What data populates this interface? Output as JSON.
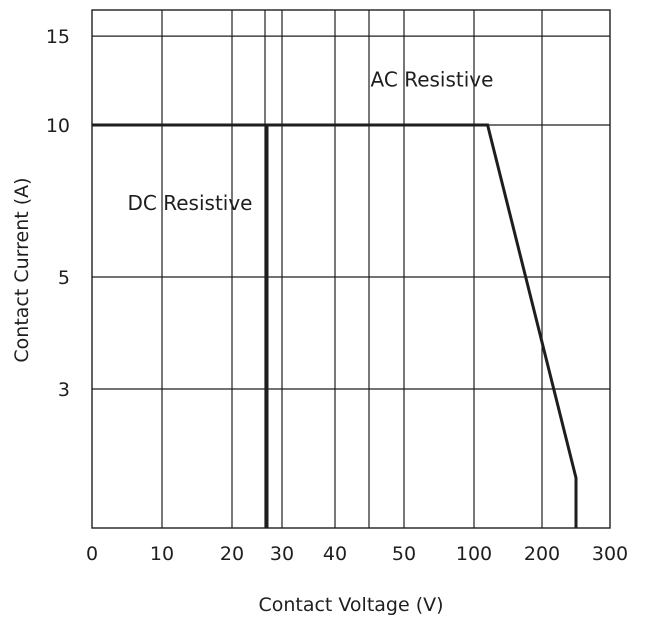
{
  "chart_data": {
    "type": "line",
    "title": "",
    "xlabel": "Contact Voltage (V)",
    "ylabel": "Contact Current (A)",
    "x_scale": "piecewise-linear (0–50, 100–300)",
    "y_scale": "log",
    "xlim": [
      0,
      300
    ],
    "ylim": [
      1,
      20
    ],
    "grid": true,
    "legend": "none",
    "x_ticks": [
      {
        "value": 0,
        "label": "0"
      },
      {
        "value": 10,
        "label": "10"
      },
      {
        "value": 20,
        "label": "20"
      },
      {
        "value": 30,
        "label": "30"
      },
      {
        "value": 40,
        "label": "40"
      },
      {
        "value": 50,
        "label": "50"
      },
      {
        "value": 100,
        "label": "100"
      },
      {
        "value": 200,
        "label": "200"
      },
      {
        "value": 300,
        "label": "300"
      }
    ],
    "x_extra_gridlines": [
      25,
      45
    ],
    "y_ticks": [
      {
        "value": 3,
        "label": "3"
      },
      {
        "value": 5,
        "label": "5"
      },
      {
        "value": 10,
        "label": "10"
      },
      {
        "value": 15,
        "label": "15"
      }
    ],
    "series": [
      {
        "name": "DC Resistive",
        "points": [
          [
            0,
            10
          ],
          [
            27,
            10
          ],
          [
            27,
            1
          ]
        ]
      },
      {
        "name": "AC Resistive",
        "points": [
          [
            0,
            10
          ],
          [
            120,
            10
          ],
          [
            250,
            2
          ],
          [
            250,
            1
          ]
        ]
      }
    ],
    "annotations": [
      {
        "text": "AC Resistive",
        "x": 70,
        "y": 12.3
      },
      {
        "text": "DC Resistive",
        "x": 14,
        "y": 7
      }
    ],
    "colors": {
      "line": "#1e1e1e",
      "grid": "#1e1e1e",
      "text": "#1e1e1e",
      "background": "#ffffff"
    }
  }
}
